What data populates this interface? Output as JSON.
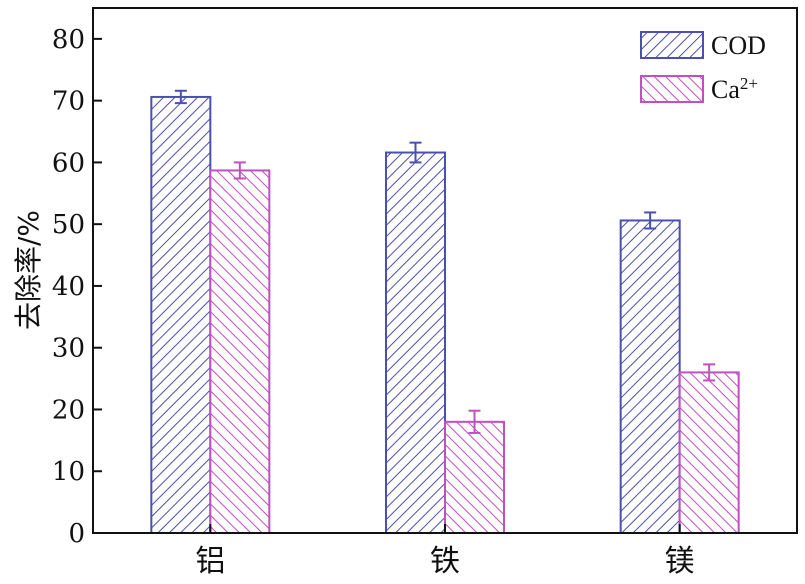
{
  "chart_data": {
    "type": "bar",
    "categories": [
      "铝",
      "铁",
      "镁"
    ],
    "ylabel": "去除率/%",
    "xlabel": "",
    "ylim": [
      0,
      85
    ],
    "yticks": [
      0,
      10,
      20,
      30,
      40,
      50,
      60,
      70,
      80
    ],
    "grid": false,
    "legend_position": "top-right",
    "series": [
      {
        "name": "COD",
        "values": [
          70.6,
          61.6,
          50.6
        ],
        "errors": [
          1.0,
          1.6,
          1.3
        ],
        "color": "#4a4fb0",
        "hatch": "forward-diagonal"
      },
      {
        "name": "Ca²⁺",
        "legend_base": "Ca",
        "legend_sup": "2+",
        "values": [
          58.7,
          18.0,
          26.0
        ],
        "errors": [
          1.3,
          1.8,
          1.3
        ],
        "color": "#c050c0",
        "hatch": "backward-diagonal"
      }
    ]
  }
}
